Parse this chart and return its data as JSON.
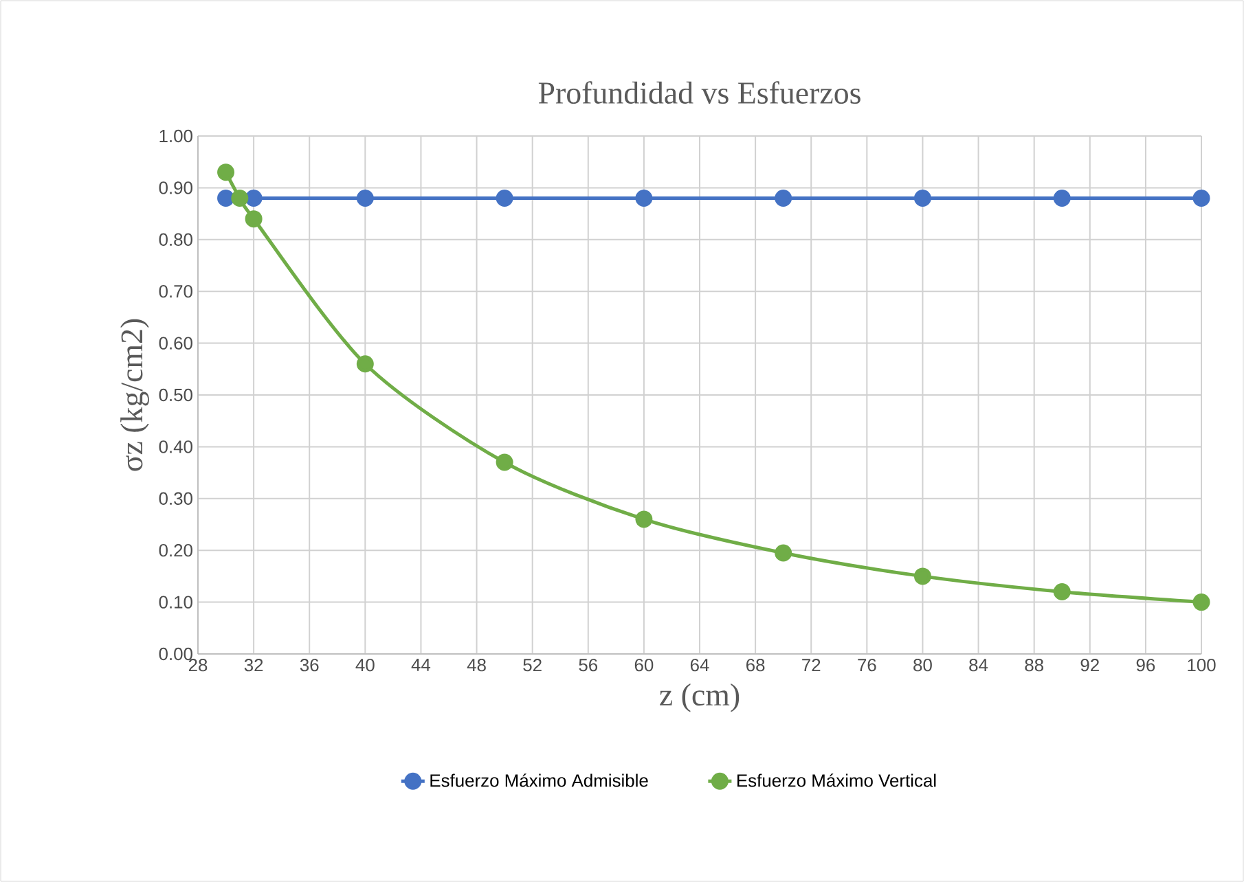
{
  "chart_data": {
    "type": "line",
    "title": "Profundidad vs Esfuerzos",
    "xlabel": "z (cm)",
    "ylabel": "σz (kg/cm2)",
    "series": [
      {
        "name": "Esfuerzo Máximo Admisible",
        "color": "#4472c4",
        "x": [
          30,
          32,
          40,
          50,
          60,
          70,
          80,
          90,
          100
        ],
        "values": [
          0.88,
          0.88,
          0.88,
          0.88,
          0.88,
          0.88,
          0.88,
          0.88,
          0.88
        ]
      },
      {
        "name": "Esfuerzo Máximo Vertical",
        "color": "#70ad47",
        "x": [
          30,
          31,
          32,
          40,
          50,
          60,
          70,
          80,
          90,
          100
        ],
        "values": [
          0.93,
          0.88,
          0.84,
          0.56,
          0.37,
          0.26,
          0.195,
          0.15,
          0.12,
          0.1
        ]
      }
    ],
    "xlim": [
      28,
      100
    ],
    "xticks": [
      28,
      32,
      36,
      40,
      44,
      48,
      52,
      56,
      60,
      64,
      68,
      72,
      76,
      80,
      84,
      88,
      92,
      96,
      100
    ],
    "ylim": [
      0,
      1
    ],
    "yticks": [
      {
        "value": 0,
        "label": "0.00"
      },
      {
        "value": 0.1,
        "label": "0.10"
      },
      {
        "value": 0.2,
        "label": "0.20"
      },
      {
        "value": 0.3,
        "label": "0.30"
      },
      {
        "value": 0.4,
        "label": "0.40"
      },
      {
        "value": 0.5,
        "label": "0.50"
      },
      {
        "value": 0.6,
        "label": "0.60"
      },
      {
        "value": 0.7,
        "label": "0.70"
      },
      {
        "value": 0.8,
        "label": "0.80"
      },
      {
        "value": 0.9,
        "label": "0.90"
      },
      {
        "value": 1,
        "label": "1.00"
      }
    ],
    "grid": true,
    "legend": "bottom",
    "marker": "circle",
    "line_style": "solid"
  }
}
